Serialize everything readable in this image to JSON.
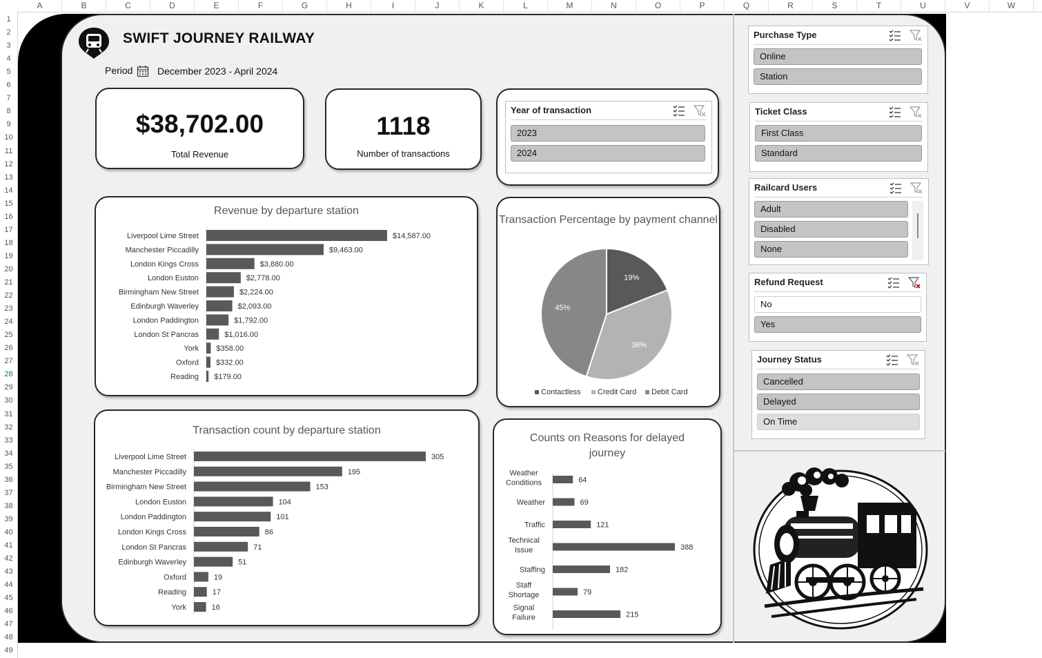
{
  "sheet": {
    "columns": [
      "A",
      "B",
      "C",
      "D",
      "E",
      "F",
      "G",
      "H",
      "I",
      "J",
      "K",
      "L",
      "M",
      "N",
      "O",
      "P",
      "Q",
      "R",
      "S",
      "T",
      "U",
      "V",
      "W"
    ],
    "rows": [
      "1",
      "2",
      "3",
      "4",
      "5",
      "6",
      "7",
      "8",
      "9",
      "10",
      "11",
      "12",
      "13",
      "14",
      "15",
      "16",
      "17",
      "18",
      "19",
      "20",
      "21",
      "22",
      "23",
      "24",
      "25",
      "26",
      "27",
      "28",
      "29",
      "30",
      "31",
      "32",
      "33",
      "34",
      "35",
      "36",
      "37",
      "38",
      "39",
      "40",
      "41",
      "42",
      "43",
      "44",
      "45",
      "46",
      "47",
      "48",
      "49"
    ],
    "selected_row": "28"
  },
  "dashboard": {
    "title": "SWIFT JOURNEY RAILWAY",
    "period_label": "Period",
    "period_value": "December 2023 - April 2024",
    "logo_icon": "train-marker-icon",
    "calendar_icon": "calendar-icon"
  },
  "kpis": {
    "revenue_value": "$38,702.00",
    "revenue_label": "Total Revenue",
    "transactions_value": "1118",
    "transactions_label": "Number of transactions"
  },
  "slicers": {
    "year": {
      "title": "Year of transaction",
      "items": [
        {
          "label": "2023",
          "state": "selected"
        },
        {
          "label": "2024",
          "state": "selected"
        }
      ]
    },
    "purchase_type": {
      "title": "Purchase Type",
      "items": [
        {
          "label": "Online",
          "state": "selected"
        },
        {
          "label": "Station",
          "state": "selected"
        }
      ]
    },
    "ticket_class": {
      "title": "Ticket Class",
      "items": [
        {
          "label": "First Class",
          "state": "selected"
        },
        {
          "label": "Standard",
          "state": "selected"
        }
      ]
    },
    "railcard": {
      "title": "Railcard Users",
      "items": [
        {
          "label": "Adult",
          "state": "selected"
        },
        {
          "label": "Disabled",
          "state": "selected"
        },
        {
          "label": "None",
          "state": "selected"
        }
      ]
    },
    "refund": {
      "title": "Refund Request",
      "items": [
        {
          "label": "No",
          "state": "unselected"
        },
        {
          "label": "Yes",
          "state": "selected"
        }
      ]
    },
    "journey_status": {
      "title": "Journey Status",
      "items": [
        {
          "label": "Cancelled",
          "state": "selected"
        },
        {
          "label": "Delayed",
          "state": "selected"
        },
        {
          "label": "On Time",
          "state": "nodata"
        }
      ]
    },
    "multiselect_icon": "multi-select-icon",
    "clear_filter_icon": "clear-filter-icon"
  },
  "colors": {
    "bar": "#595959",
    "pie_contactless": "#595959",
    "pie_credit": "#b3b3b3",
    "pie_debit": "#878787",
    "frame": "#1b2a35",
    "clear_filter_active": "#c00000"
  },
  "chart_data": [
    {
      "id": "revenue",
      "type": "bar",
      "orientation": "horizontal",
      "title": "Revenue by departure station",
      "categories": [
        "Liverpool Lime Street",
        "Manchester Piccadilly",
        "London Kings Cross",
        "London Euston",
        "Birmingham New Street",
        "Edinburgh Waverley",
        "London Paddington",
        "London St Pancras",
        "York",
        "Oxford",
        "Reading"
      ],
      "values": [
        14587,
        9463,
        3880,
        2778,
        2224,
        2093,
        1792,
        1016,
        358,
        332,
        179
      ],
      "labels": [
        "$14,587.00",
        "$9,463.00",
        "$3,880.00",
        "$2,778.00",
        "$2,224.00",
        "$2,093.00",
        "$1,792.00",
        "$1,016.00",
        "$358.00",
        "$332.00",
        "$179.00"
      ],
      "xlim": [
        0,
        14587
      ]
    },
    {
      "id": "count",
      "type": "bar",
      "orientation": "horizontal",
      "title": "Transaction count by departure station",
      "categories": [
        "Liverpool Lime Street",
        "Manchester Piccadilly",
        "Birmingham New Street",
        "London Euston",
        "London Paddington",
        "London Kings Cross",
        "London St Pancras",
        "Edinburgh Waverley",
        "Oxford",
        "Reading",
        "York"
      ],
      "values": [
        305,
        195,
        153,
        104,
        101,
        86,
        71,
        51,
        19,
        17,
        16
      ],
      "labels": [
        "305",
        "195",
        "153",
        "104",
        "101",
        "86",
        "71",
        "51",
        "19",
        "17",
        "16"
      ],
      "xlim": [
        0,
        305
      ]
    },
    {
      "id": "pie",
      "type": "pie",
      "title": "Transaction Percentage by payment channel",
      "categories": [
        "Contactless",
        "Credit Card",
        "Debit Card"
      ],
      "values": [
        19,
        36,
        45
      ],
      "labels": [
        "19%",
        "36%",
        "45%"
      ],
      "legend": "bottom"
    },
    {
      "id": "delay",
      "type": "bar",
      "orientation": "horizontal",
      "title": "Counts on Reasons for delayed journey",
      "categories": [
        "Weather Conditions",
        "Weather",
        "Traffic",
        "Technical Issue",
        "Staffing",
        "Staff Shortage",
        "Signal Failure"
      ],
      "values": [
        64,
        69,
        121,
        388,
        182,
        79,
        215
      ],
      "labels": [
        "64",
        "69",
        "121",
        "388",
        "182",
        "79",
        "215"
      ],
      "xlim": [
        0,
        388
      ]
    }
  ]
}
